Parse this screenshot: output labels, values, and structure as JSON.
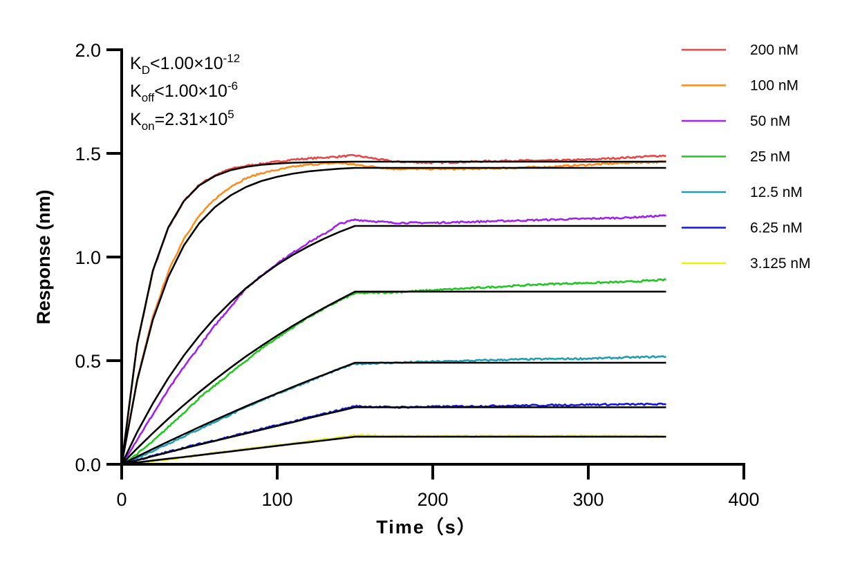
{
  "chart_data": {
    "type": "line",
    "xlabel": "Time（s）",
    "ylabel": "Response (nm)",
    "xlim": [
      0,
      400
    ],
    "ylim": [
      0,
      2.0
    ],
    "xticks": [
      "0",
      "100",
      "200",
      "300",
      "400"
    ],
    "yticks": [
      "0.0",
      "0.5",
      "1.0",
      "1.5",
      "2.0"
    ],
    "grid": false,
    "legend_position": "right",
    "annotations": {
      "kd": {
        "base": "K",
        "sub": "D",
        "rest": "<1.00×10",
        "sup": "-12"
      },
      "koff": {
        "base": "K",
        "sub": "off",
        "rest": "<1.00×10",
        "sup": "-6"
      },
      "kon": {
        "base": "K",
        "sub": "on",
        "rest": "=2.31×10",
        "sup": "5"
      }
    },
    "fit_color": "#000000",
    "x": [
      0,
      10,
      20,
      30,
      40,
      50,
      60,
      70,
      80,
      90,
      100,
      110,
      120,
      130,
      140,
      150,
      175,
      200,
      225,
      250,
      275,
      300,
      325,
      350
    ],
    "series": [
      {
        "name": "200 nM",
        "color": "#ee4444",
        "values": [
          0,
          0.58,
          0.93,
          1.14,
          1.27,
          1.35,
          1.395,
          1.425,
          1.44,
          1.45,
          1.46,
          1.47,
          1.475,
          1.48,
          1.485,
          1.49,
          1.46,
          1.455,
          1.46,
          1.465,
          1.465,
          1.47,
          1.48,
          1.49
        ],
        "fit": [
          0,
          0.583,
          0.933,
          1.143,
          1.27,
          1.346,
          1.391,
          1.419,
          1.435,
          1.445,
          1.451,
          1.455,
          1.457,
          1.458,
          1.459,
          1.46,
          1.46,
          1.46,
          1.46,
          1.46,
          1.46,
          1.46,
          1.46,
          1.46
        ]
      },
      {
        "name": "100 nM",
        "color": "#ff8c1a",
        "values": [
          0,
          0.41,
          0.71,
          0.93,
          1.09,
          1.2,
          1.28,
          1.34,
          1.38,
          1.405,
          1.42,
          1.435,
          1.445,
          1.45,
          1.455,
          1.445,
          1.425,
          1.425,
          1.425,
          1.43,
          1.435,
          1.445,
          1.455,
          1.46
        ],
        "fit": [
          0,
          0.405,
          0.696,
          0.904,
          1.056,
          1.164,
          1.241,
          1.297,
          1.338,
          1.367,
          1.387,
          1.402,
          1.413,
          1.42,
          1.426,
          1.43,
          1.43,
          1.43,
          1.43,
          1.43,
          1.43,
          1.43,
          1.43,
          1.43
        ]
      },
      {
        "name": "50 nM",
        "color": "#a020f0",
        "values": [
          0,
          0.12,
          0.24,
          0.36,
          0.47,
          0.57,
          0.67,
          0.76,
          0.85,
          0.91,
          0.97,
          1.02,
          1.07,
          1.11,
          1.16,
          1.18,
          1.165,
          1.165,
          1.17,
          1.175,
          1.18,
          1.185,
          1.19,
          1.2
        ],
        "fit": [
          0,
          0.156,
          0.293,
          0.416,
          0.525,
          0.621,
          0.707,
          0.782,
          0.85,
          0.909,
          0.963,
          1.01,
          1.051,
          1.088,
          1.121,
          1.15,
          1.15,
          1.15,
          1.15,
          1.15,
          1.15,
          1.15,
          1.15,
          1.15
        ]
      },
      {
        "name": "25 nM",
        "color": "#1ec81e",
        "values": [
          0,
          0.05,
          0.11,
          0.18,
          0.25,
          0.32,
          0.38,
          0.44,
          0.5,
          0.56,
          0.61,
          0.66,
          0.71,
          0.75,
          0.79,
          0.825,
          0.83,
          0.84,
          0.85,
          0.86,
          0.87,
          0.875,
          0.88,
          0.89
        ],
        "fit": [
          0,
          0.077,
          0.15,
          0.22,
          0.286,
          0.349,
          0.409,
          0.466,
          0.521,
          0.572,
          0.621,
          0.668,
          0.712,
          0.754,
          0.794,
          0.833,
          0.833,
          0.833,
          0.833,
          0.833,
          0.833,
          0.833,
          0.833,
          0.833
        ]
      },
      {
        "name": "12.5 nM",
        "color": "#1e9eb4",
        "values": [
          0,
          0.03,
          0.065,
          0.1,
          0.135,
          0.17,
          0.205,
          0.24,
          0.275,
          0.31,
          0.34,
          0.37,
          0.4,
          0.43,
          0.46,
          0.485,
          0.49,
          0.495,
          0.5,
          0.505,
          0.508,
          0.51,
          0.515,
          0.52
        ],
        "fit": [
          0,
          0.037,
          0.074,
          0.11,
          0.145,
          0.18,
          0.214,
          0.247,
          0.28,
          0.312,
          0.342,
          0.373,
          0.403,
          0.432,
          0.461,
          0.49,
          0.49,
          0.49,
          0.49,
          0.49,
          0.49,
          0.49,
          0.49,
          0.49
        ]
      },
      {
        "name": "6.25 nM",
        "color": "#1414e6",
        "values": [
          0,
          0.02,
          0.04,
          0.06,
          0.08,
          0.098,
          0.116,
          0.134,
          0.152,
          0.17,
          0.188,
          0.206,
          0.225,
          0.243,
          0.262,
          0.28,
          0.275,
          0.278,
          0.28,
          0.283,
          0.285,
          0.288,
          0.289,
          0.29
        ],
        "fit": [
          0,
          0.0196,
          0.039,
          0.058,
          0.077,
          0.095,
          0.113,
          0.131,
          0.149,
          0.167,
          0.185,
          0.203,
          0.222,
          0.24,
          0.257,
          0.275,
          0.275,
          0.275,
          0.275,
          0.275,
          0.275,
          0.275,
          0.275,
          0.275
        ]
      },
      {
        "name": "3.125 nM",
        "color": "#f0f000",
        "values": [
          0,
          0.0,
          0.015,
          0.025,
          0.035,
          0.045,
          0.055,
          0.065,
          0.074,
          0.083,
          0.092,
          0.101,
          0.11,
          0.12,
          0.13,
          0.14,
          0.135,
          0.135,
          0.135,
          0.136,
          0.135,
          0.136,
          0.135,
          0.135
        ],
        "fit": [
          0,
          0.009,
          0.018,
          0.027,
          0.035,
          0.044,
          0.053,
          0.062,
          0.071,
          0.08,
          0.089,
          0.098,
          0.106,
          0.115,
          0.124,
          0.133,
          0.133,
          0.133,
          0.133,
          0.133,
          0.133,
          0.133,
          0.133,
          0.133
        ]
      }
    ]
  }
}
